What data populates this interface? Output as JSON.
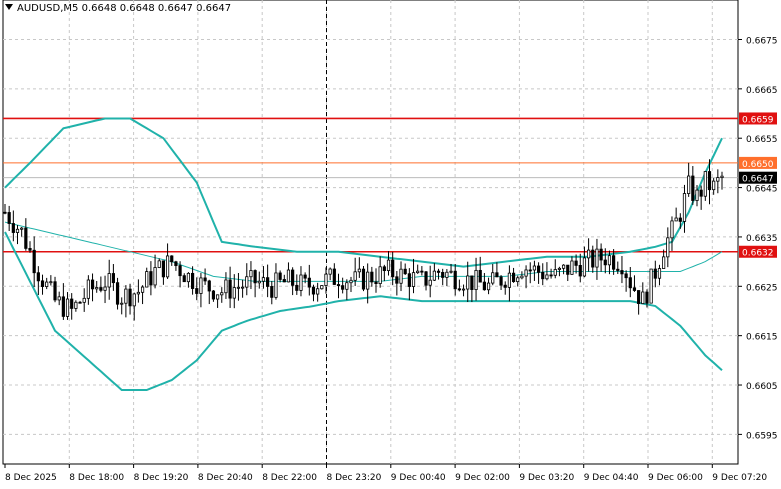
{
  "header": {
    "symbol_label": "AUDUSD,M5",
    "ohlc_label": "0.6648 0.6648 0.6647 0.6647",
    "menu_icon": "triangle-down-icon"
  },
  "colors": {
    "background": "#ffffff",
    "grid": "#c8c8c8",
    "candle": "#000000",
    "bands": "#20b2aa",
    "resistance_line": "#e01010",
    "mid_line": "#ff6f2c",
    "current_price_bg": "#000000"
  },
  "chart_data": {
    "type": "candlestick",
    "symbol": "AUDUSD",
    "timeframe": "M5",
    "ylim": [
      0.6589,
      0.6683
    ],
    "y_ticks": [
      "0.6675",
      "0.6665",
      "0.6655",
      "0.6645",
      "0.6635",
      "0.6625",
      "0.6615",
      "0.6605",
      "0.6595"
    ],
    "x_ticks": [
      "8 Dec 2025",
      "8 Dec 18:00",
      "8 Dec 19:20",
      "8 Dec 20:40",
      "8 Dec 22:00",
      "8 Dec 23:20",
      "9 Dec 00:40",
      "9 Dec 02:00",
      "9 Dec 03:20",
      "9 Dec 04:40",
      "9 Dec 06:00",
      "9 Dec 07:20"
    ],
    "grid": true,
    "horizontal_levels": [
      {
        "value": 0.6659,
        "label": "0.6659",
        "style": "red"
      },
      {
        "value": 0.665,
        "label": "0.6650",
        "style": "orange"
      },
      {
        "value": 0.6632,
        "label": "0.6632",
        "style": "red"
      }
    ],
    "current_price": {
      "value": 0.6647,
      "label": "0.6647"
    },
    "session_separator": "8 Dec 23:20",
    "price_path": [
      [
        0,
        0.664
      ],
      [
        4,
        0.6636
      ],
      [
        8,
        0.6628
      ],
      [
        12,
        0.6622
      ],
      [
        16,
        0.662
      ],
      [
        20,
        0.6624
      ],
      [
        24,
        0.6626
      ],
      [
        28,
        0.6623
      ],
      [
        32,
        0.6624
      ],
      [
        36,
        0.6628
      ],
      [
        40,
        0.663
      ],
      [
        44,
        0.6627
      ],
      [
        48,
        0.6625
      ],
      [
        52,
        0.6624
      ],
      [
        56,
        0.6625
      ],
      [
        60,
        0.6626
      ],
      [
        64,
        0.6625
      ],
      [
        68,
        0.6626
      ],
      [
        72,
        0.6625
      ],
      [
        76,
        0.6626
      ],
      [
        80,
        0.6627
      ],
      [
        84,
        0.6626
      ],
      [
        88,
        0.6627
      ],
      [
        92,
        0.6628
      ],
      [
        96,
        0.6627
      ],
      [
        100,
        0.6626
      ],
      [
        104,
        0.6628
      ],
      [
        108,
        0.6627
      ],
      [
        112,
        0.6626
      ],
      [
        116,
        0.6625
      ],
      [
        120,
        0.6627
      ],
      [
        124,
        0.6629
      ],
      [
        128,
        0.6628
      ],
      [
        132,
        0.6627
      ],
      [
        136,
        0.6629
      ],
      [
        140,
        0.663
      ],
      [
        144,
        0.6631
      ],
      [
        148,
        0.663
      ],
      [
        150,
        0.6626
      ],
      [
        153,
        0.6622
      ],
      [
        156,
        0.6628
      ],
      [
        158,
        0.6633
      ],
      [
        160,
        0.6636
      ],
      [
        162,
        0.664
      ],
      [
        164,
        0.6645
      ],
      [
        166,
        0.6643
      ],
      [
        168,
        0.6646
      ],
      [
        170,
        0.6645
      ],
      [
        172,
        0.6647
      ]
    ],
    "upper_band": [
      [
        0,
        0.6645
      ],
      [
        6,
        0.665
      ],
      [
        14,
        0.6657
      ],
      [
        24,
        0.6659
      ],
      [
        30,
        0.6659
      ],
      [
        38,
        0.6655
      ],
      [
        46,
        0.6646
      ],
      [
        52,
        0.6634
      ],
      [
        60,
        0.6633
      ],
      [
        70,
        0.6632
      ],
      [
        80,
        0.6632
      ],
      [
        90,
        0.6631
      ],
      [
        100,
        0.663
      ],
      [
        110,
        0.6629
      ],
      [
        120,
        0.663
      ],
      [
        130,
        0.6631
      ],
      [
        140,
        0.6631
      ],
      [
        150,
        0.6632
      ],
      [
        156,
        0.6633
      ],
      [
        160,
        0.6634
      ],
      [
        164,
        0.664
      ],
      [
        168,
        0.6648
      ],
      [
        172,
        0.6655
      ]
    ],
    "middle_band": [
      [
        0,
        0.6638
      ],
      [
        10,
        0.6636
      ],
      [
        20,
        0.6634
      ],
      [
        30,
        0.6632
      ],
      [
        40,
        0.663
      ],
      [
        50,
        0.6627
      ],
      [
        60,
        0.6626
      ],
      [
        70,
        0.6626
      ],
      [
        80,
        0.6626
      ],
      [
        90,
        0.6626
      ],
      [
        100,
        0.6627
      ],
      [
        110,
        0.6627
      ],
      [
        120,
        0.6627
      ],
      [
        130,
        0.6628
      ],
      [
        140,
        0.6628
      ],
      [
        148,
        0.6628
      ],
      [
        156,
        0.6628
      ],
      [
        162,
        0.6628
      ],
      [
        168,
        0.663
      ],
      [
        172,
        0.6632
      ]
    ],
    "lower_band": [
      [
        0,
        0.6636
      ],
      [
        6,
        0.6626
      ],
      [
        12,
        0.6616
      ],
      [
        20,
        0.661
      ],
      [
        28,
        0.6604
      ],
      [
        34,
        0.6604
      ],
      [
        40,
        0.6606
      ],
      [
        46,
        0.661
      ],
      [
        52,
        0.6616
      ],
      [
        58,
        0.6618
      ],
      [
        66,
        0.662
      ],
      [
        74,
        0.6621
      ],
      [
        80,
        0.6622
      ],
      [
        90,
        0.6623
      ],
      [
        100,
        0.6622
      ],
      [
        110,
        0.6622
      ],
      [
        120,
        0.6622
      ],
      [
        130,
        0.6622
      ],
      [
        146,
        0.6622
      ],
      [
        150,
        0.6622
      ],
      [
        156,
        0.6621
      ],
      [
        162,
        0.6617
      ],
      [
        168,
        0.6611
      ],
      [
        172,
        0.6608
      ]
    ]
  }
}
